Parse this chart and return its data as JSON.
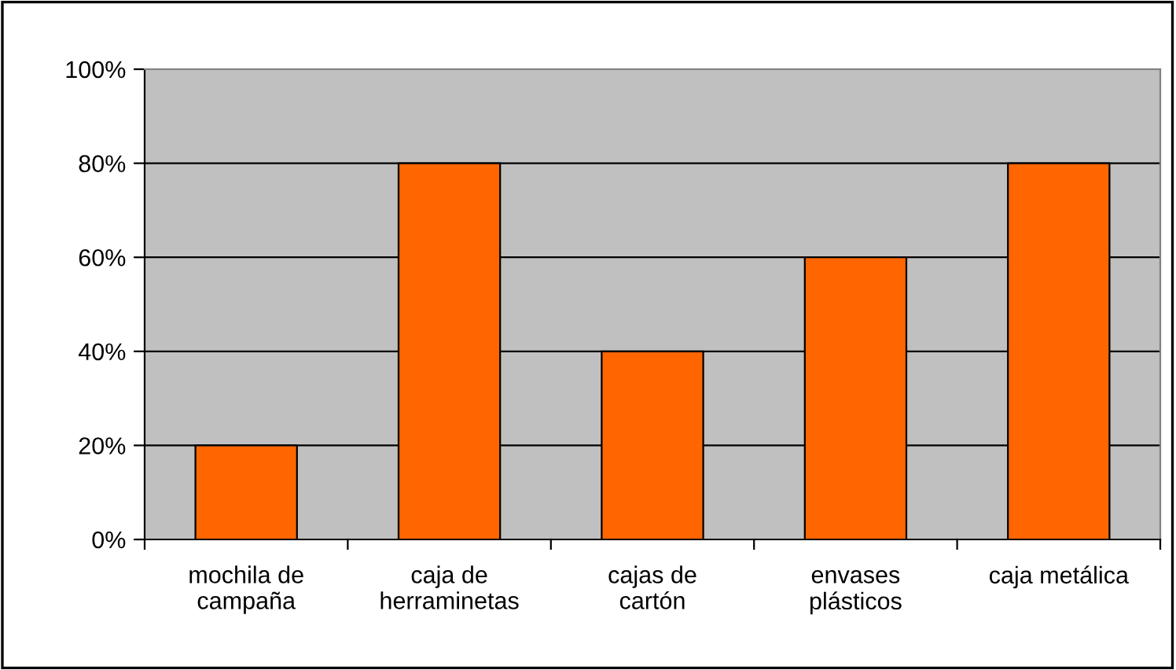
{
  "chart_data": {
    "type": "bar",
    "categories": [
      "mochila de\ncampaña",
      "caja de\nherraminetas",
      "cajas de\ncartón",
      "envases\nplásticos",
      "caja metálica"
    ],
    "values": [
      20,
      80,
      40,
      60,
      80
    ],
    "color": "#ff6600",
    "ylim": [
      0,
      100
    ],
    "yticks": [
      {
        "value": 0,
        "label": "0%"
      },
      {
        "value": 20,
        "label": "20%"
      },
      {
        "value": 40,
        "label": "40%"
      },
      {
        "value": 60,
        "label": "60%"
      },
      {
        "value": 80,
        "label": "80%"
      },
      {
        "value": 100,
        "label": "100%"
      }
    ],
    "grid": "y"
  }
}
